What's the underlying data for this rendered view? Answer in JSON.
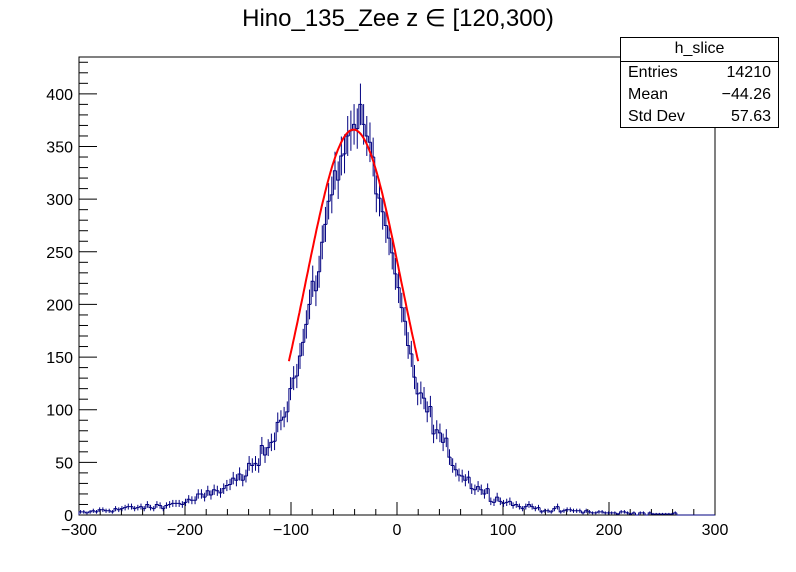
{
  "title": "Hino_135_Zee z  ∈ [120,300)",
  "stats": {
    "name": "h_slice",
    "rows": [
      {
        "label": "Entries",
        "value": "14210"
      },
      {
        "label": "Mean",
        "value": "−44.26"
      },
      {
        "label": "Std Dev",
        "value": "57.63"
      }
    ]
  },
  "colors": {
    "histogram": "#000080",
    "fit": "#ff0000",
    "axis": "#000000"
  },
  "chart_data": {
    "type": "histogram",
    "xlim": [
      -300,
      300
    ],
    "ylim": [
      0,
      435
    ],
    "x_ticks": [
      "−300",
      "−200",
      "−100",
      "0",
      "100",
      "200",
      "300"
    ],
    "y_ticks": [
      "0",
      "50",
      "100",
      "150",
      "200",
      "250",
      "300",
      "350",
      "400"
    ],
    "bin_width": 3,
    "histogram": {
      "x_bin_centers_sampled": [
        -298,
        -280,
        -260,
        -240,
        -220,
        -200,
        -180,
        -160,
        -140,
        -130,
        -120,
        -110,
        -100,
        -90,
        -80,
        -70,
        -60,
        -50,
        -40,
        -35,
        -30,
        -20,
        -10,
        0,
        10,
        20,
        30,
        40,
        50,
        60,
        70,
        80,
        90,
        100,
        110,
        120,
        140,
        160,
        180,
        200,
        220,
        240,
        260,
        280,
        298
      ],
      "counts_sampled": [
        2,
        4,
        6,
        7,
        9,
        12,
        18,
        28,
        40,
        52,
        70,
        92,
        118,
        155,
        205,
        260,
        315,
        355,
        370,
        385,
        360,
        320,
        270,
        215,
        160,
        120,
        95,
        75,
        55,
        40,
        30,
        24,
        18,
        14,
        10,
        8,
        5,
        4,
        3,
        2,
        2,
        1,
        1,
        0,
        0
      ]
    },
    "fit": {
      "type": "gaussian",
      "x_range": [
        -102,
        20
      ],
      "amplitude": 366,
      "mean": -41,
      "sigma": 45
    }
  }
}
